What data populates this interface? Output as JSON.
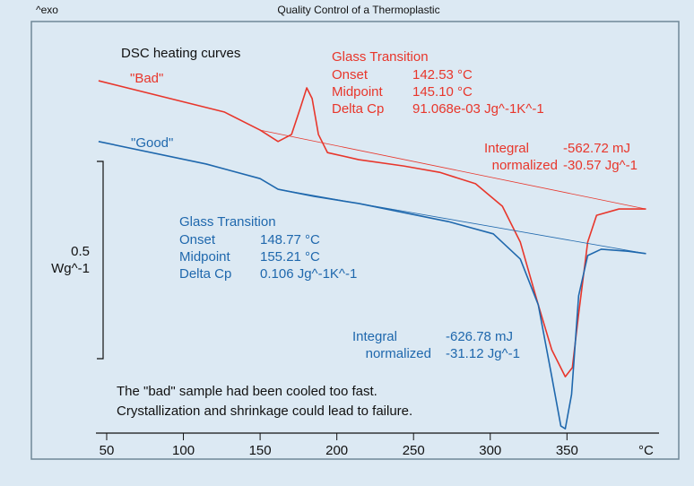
{
  "chart_data": {
    "type": "line",
    "title": "Quality Control of a Thermoplastic",
    "exo_label": "^exo",
    "subtitle": "DSC heating curves",
    "xlim": [
      43,
      410
    ],
    "xticks": [
      50,
      100,
      150,
      200,
      250,
      300,
      350
    ],
    "x_unit": "°C",
    "ylim": [
      0,
      1.05
    ],
    "scale_bar": {
      "value": 0.5,
      "unit": "Wg^-1"
    },
    "series": [
      {
        "name": "\"Bad\"",
        "color": "#e8362b",
        "x": [
          44.7,
          126.6,
          150,
          161.7,
          170.5,
          176.3,
          180.4,
          183.9,
          188,
          193.9,
          214.3,
          243.6,
          267,
          290.4,
          307.9,
          319.6,
          331.3,
          340.1,
          348.9,
          353.5,
          357.6,
          363.5,
          369.3,
          383.9,
          401.5
        ],
        "values": [
          0.893,
          0.814,
          0.768,
          0.739,
          0.757,
          0.825,
          0.875,
          0.848,
          0.757,
          0.711,
          0.693,
          0.677,
          0.661,
          0.632,
          0.575,
          0.484,
          0.325,
          0.211,
          0.143,
          0.166,
          0.302,
          0.484,
          0.552,
          0.568,
          0.568
        ],
        "baseline": {
          "x": [
            150,
            401.5
          ],
          "values": [
            0.768,
            0.568
          ]
        }
      },
      {
        "name": "\"Good\"",
        "color": "#1f68ad",
        "x": [
          44.7,
          114.9,
          150,
          161.7,
          185.1,
          214.3,
          243.6,
          272.8,
          302,
          319.6,
          331.3,
          340.1,
          346,
          348.9,
          353,
          357.6,
          363.5,
          372.3,
          389.8,
          401.5
        ],
        "values": [
          0.739,
          0.682,
          0.645,
          0.618,
          0.6,
          0.582,
          0.559,
          0.536,
          0.505,
          0.441,
          0.325,
          0.143,
          0.018,
          0.011,
          0.098,
          0.348,
          0.45,
          0.466,
          0.461,
          0.455
        ],
        "baseline": {
          "x": [
            161.7,
            401.5
          ],
          "values": [
            0.618,
            0.455
          ]
        }
      }
    ],
    "annotations": {
      "bad_glass": {
        "title": "Glass Transition",
        "rows": [
          [
            "Onset",
            "142.53 °C"
          ],
          [
            "Midpoint",
            "145.10 °C"
          ],
          [
            "Delta Cp",
            "91.068e-03 Jg^-1K^-1"
          ]
        ]
      },
      "bad_integral": {
        "rows": [
          [
            "Integral",
            "-562.72 mJ"
          ],
          [
            "normalized",
            "-30.57 Jg^-1"
          ]
        ]
      },
      "good_glass": {
        "title": "Glass Transition",
        "rows": [
          [
            "Onset",
            "148.77 °C"
          ],
          [
            "Midpoint",
            "155.21 °C"
          ],
          [
            "Delta Cp",
            "0.106 Jg^-1K^-1"
          ]
        ]
      },
      "good_integral": {
        "rows": [
          [
            "Integral",
            "-626.78 mJ"
          ],
          [
            "normalized",
            "-31.12 Jg^-1"
          ]
        ]
      },
      "note": [
        "The \"bad\" sample had been cooled too fast.",
        "Crystallization and shrinkage could lead to failure."
      ]
    }
  }
}
